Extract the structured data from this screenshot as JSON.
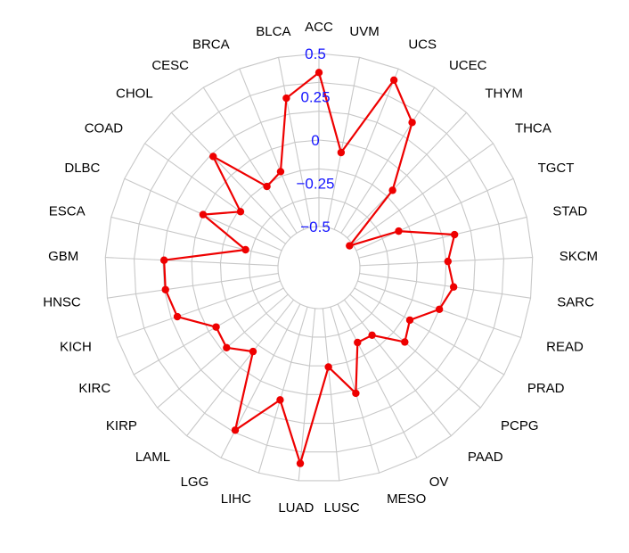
{
  "chart_data": {
    "type": "radar",
    "categories": [
      "ACC",
      "UVM",
      "UCS",
      "UCEC",
      "THYM",
      "THCA",
      "TGCT",
      "STAD",
      "SKCM",
      "SARC",
      "READ",
      "PRAD",
      "PCPG",
      "PAAD",
      "OV",
      "MESO",
      "LUSC",
      "LUAD",
      "LIHC",
      "LGG",
      "LAML",
      "KIRP",
      "KIRC",
      "KICH",
      "HNSC",
      "GBM",
      "ESCA",
      "DLBC",
      "COAD",
      "CHOL",
      "CESC",
      "BRCA",
      "BLCA"
    ],
    "series": [
      {
        "color": "#ee0000",
        "values": [
          0.39,
          -0.06,
          0.43,
          0.26,
          -0.12,
          -0.52,
          -0.23,
          0.07,
          0.01,
          0.05,
          0.0,
          -0.13,
          -0.08,
          -0.24,
          -0.25,
          0.02,
          -0.16,
          0.4,
          0.06,
          0.32,
          -0.12,
          -0.03,
          -0.05,
          0.13,
          0.16,
          0.16,
          -0.3,
          0.0,
          -0.18,
          0.15,
          -0.18,
          -0.14,
          0.26
        ]
      }
    ],
    "rlim": [
      -0.5,
      0.5
    ],
    "rticks": [
      "0.5",
      "0.25",
      "0",
      "−0.25",
      "−0.5"
    ],
    "rtick_values": [
      0.5,
      0.25,
      0,
      -0.25,
      -0.5
    ],
    "grid": true,
    "grid_levels": 6,
    "tick_color": "#1515ff"
  }
}
